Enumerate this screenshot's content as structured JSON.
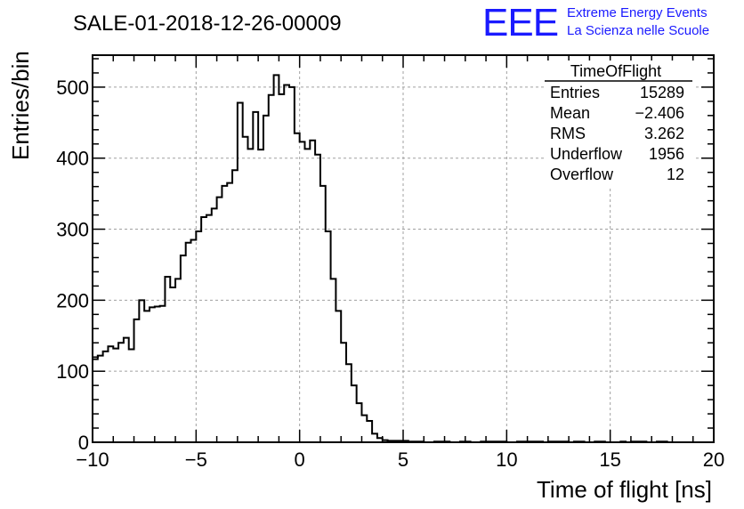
{
  "header": {
    "run_title": "SALE-01-2018-12-26-00009",
    "logo_mark": "EEE",
    "logo_line1": "Extreme Energy Events",
    "logo_line2": "La Scienza nelle Scuole",
    "logo_color": "#1a1aff"
  },
  "stats_box": {
    "name": "TimeOfFlight",
    "rows": [
      {
        "label": "Entries",
        "value": "15289"
      },
      {
        "label": "Mean",
        "value": "−2.406"
      },
      {
        "label": "RMS",
        "value": "3.262"
      },
      {
        "label": "Underflow",
        "value": "1956"
      },
      {
        "label": "Overflow",
        "value": "12"
      }
    ]
  },
  "chart_data": {
    "type": "bar",
    "histogram_style": "step",
    "xlabel": "Time of flight [ns]",
    "ylabel": "Entries/bin",
    "xlim": [
      -10,
      20
    ],
    "ylim": [
      0,
      545
    ],
    "bin_width": 0.25,
    "x_ticks": [
      -10,
      -5,
      0,
      5,
      10,
      15,
      20
    ],
    "x_tick_labels": [
      "−10",
      "−5",
      "0",
      "5",
      "10",
      "15",
      "20"
    ],
    "y_ticks": [
      0,
      100,
      200,
      300,
      400,
      500
    ],
    "y_tick_labels": [
      "0",
      "100",
      "200",
      "300",
      "400",
      "500"
    ],
    "grid": true,
    "line_color": "#000000",
    "values": [
      117,
      122,
      128,
      135,
      132,
      140,
      147,
      131,
      173,
      200,
      185,
      190,
      191,
      192,
      233,
      218,
      230,
      263,
      281,
      285,
      297,
      317,
      320,
      329,
      345,
      361,
      365,
      383,
      478,
      430,
      413,
      465,
      412,
      460,
      489,
      517,
      490,
      503,
      500,
      435,
      423,
      413,
      425,
      405,
      361,
      297,
      230,
      185,
      140,
      110,
      80,
      55,
      38,
      30,
      12,
      6,
      3,
      2,
      2,
      2,
      2,
      1,
      1,
      1,
      0,
      0,
      1,
      1,
      1,
      0,
      0,
      1,
      1,
      0,
      0,
      1,
      1,
      1,
      1,
      1,
      0,
      0,
      1,
      1,
      1,
      1,
      1,
      0,
      1,
      1,
      1,
      1,
      0,
      1,
      1,
      0,
      0,
      1,
      1,
      0,
      0,
      0,
      1,
      0,
      1,
      1,
      1,
      0,
      0,
      1,
      1,
      0,
      0,
      0,
      0,
      0,
      0,
      0,
      0,
      0
    ]
  }
}
